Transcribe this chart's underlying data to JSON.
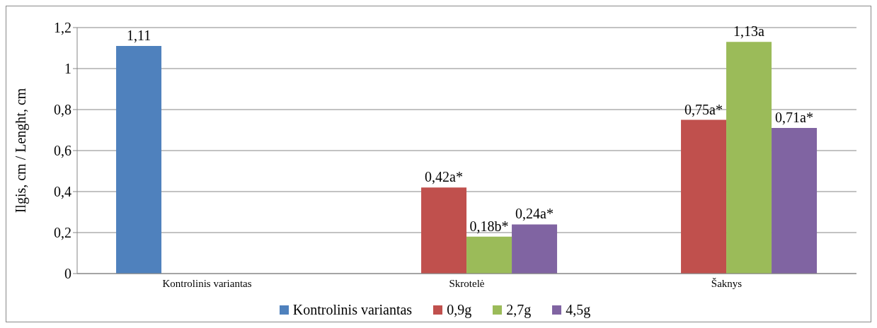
{
  "chart_data": {
    "type": "bar",
    "ylabel": "Ilgis, cm / Lenght, cm",
    "categories": [
      "Kontrolinis variantas",
      "Skrotelė",
      "Šaknys"
    ],
    "series": [
      {
        "name": "Kontrolinis variantas",
        "color": "#4f81bd",
        "values": [
          1.11,
          null,
          null
        ],
        "value_labels": [
          "1,11",
          null,
          null
        ]
      },
      {
        "name": "0,9g",
        "color": "#c0504d",
        "values": [
          null,
          0.42,
          0.75
        ],
        "value_labels": [
          null,
          "0,42a*",
          "0,75a*"
        ]
      },
      {
        "name": "2,7g",
        "color": "#9bbb59",
        "values": [
          null,
          0.18,
          1.13
        ],
        "value_labels": [
          null,
          "0,18b*",
          "1,13a"
        ]
      },
      {
        "name": "4,5g",
        "color": "#8064a2",
        "values": [
          null,
          0.24,
          0.71
        ],
        "value_labels": [
          null,
          "0,24a*",
          "0,71a*"
        ]
      }
    ],
    "ylim": [
      0,
      1.2
    ],
    "yticks": [
      0,
      {
        "value": 0.2,
        "label": "0,2"
      },
      {
        "value": 0.4,
        "label": "0,4"
      },
      {
        "value": 0.6,
        "label": "0,6"
      },
      {
        "value": 0.8,
        "label": "0,8"
      },
      1,
      {
        "value": 1.2,
        "label": "1,2"
      }
    ],
    "grid": "y",
    "legend": "bottom"
  }
}
